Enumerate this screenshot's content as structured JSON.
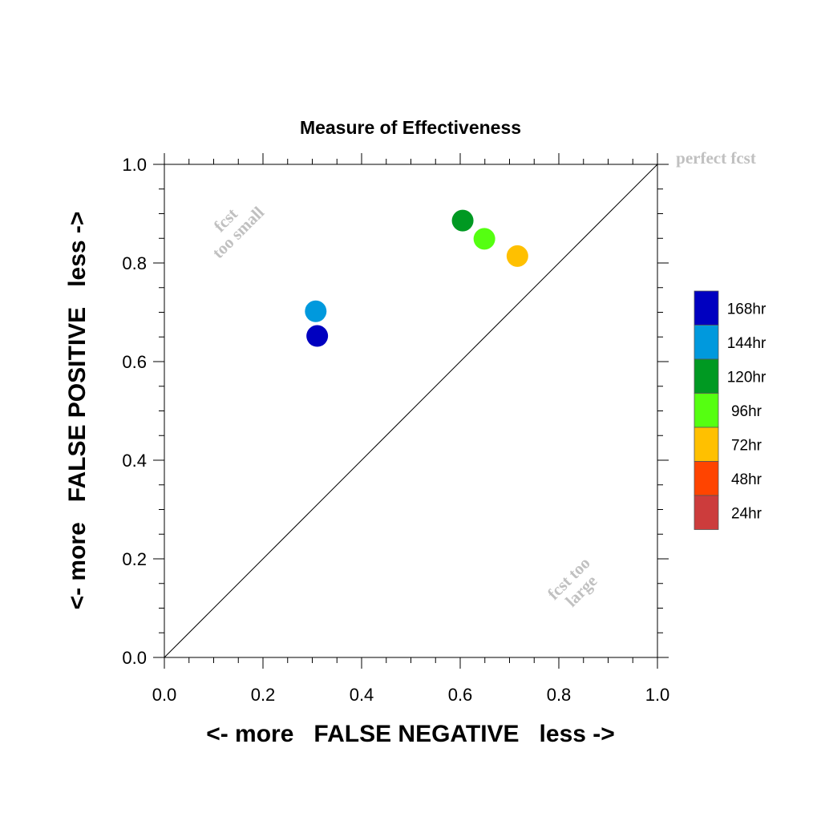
{
  "chart_data": {
    "type": "scatter",
    "title": "Measure of Effectiveness",
    "xlabel": "<- more   FALSE NEGATIVE   less ->",
    "ylabel": "<- more   FALSE POSITIVE   less ->",
    "xlim": [
      0.0,
      1.0
    ],
    "ylim": [
      0.0,
      1.0
    ],
    "x_ticks": [
      "0.0",
      "0.2",
      "0.4",
      "0.6",
      "0.8",
      "1.0"
    ],
    "y_ticks": [
      "0.0",
      "0.2",
      "0.4",
      "0.6",
      "0.8",
      "1.0"
    ],
    "grid": false,
    "diagonal_reference_line": true,
    "annotations": {
      "perfect": "perfect fcst",
      "too_small_line1": "fcst",
      "too_small_line2": "too small",
      "too_large_line1": "fcst too",
      "too_large_line2": "large"
    },
    "points": [
      {
        "series": "168hr",
        "x": 0.31,
        "y": 0.652
      },
      {
        "series": "144hr",
        "x": 0.307,
        "y": 0.702
      },
      {
        "series": "120hr",
        "x": 0.605,
        "y": 0.886
      },
      {
        "series": "96hr",
        "x": 0.649,
        "y": 0.849
      },
      {
        "series": "72hr",
        "x": 0.716,
        "y": 0.814
      }
    ],
    "legend": {
      "placement": "right",
      "entries": [
        {
          "label": "168hr",
          "color": "#0000c0"
        },
        {
          "label": "144hr",
          "color": "#0099dd"
        },
        {
          "label": "120hr",
          "color": "#009922"
        },
        {
          "label": "96hr",
          "color": "#55ff11"
        },
        {
          "label": "72hr",
          "color": "#ffc000"
        },
        {
          "label": "48hr",
          "color": "#ff4400"
        },
        {
          "label": "24hr",
          "color": "#cc3c3c"
        }
      ]
    }
  }
}
